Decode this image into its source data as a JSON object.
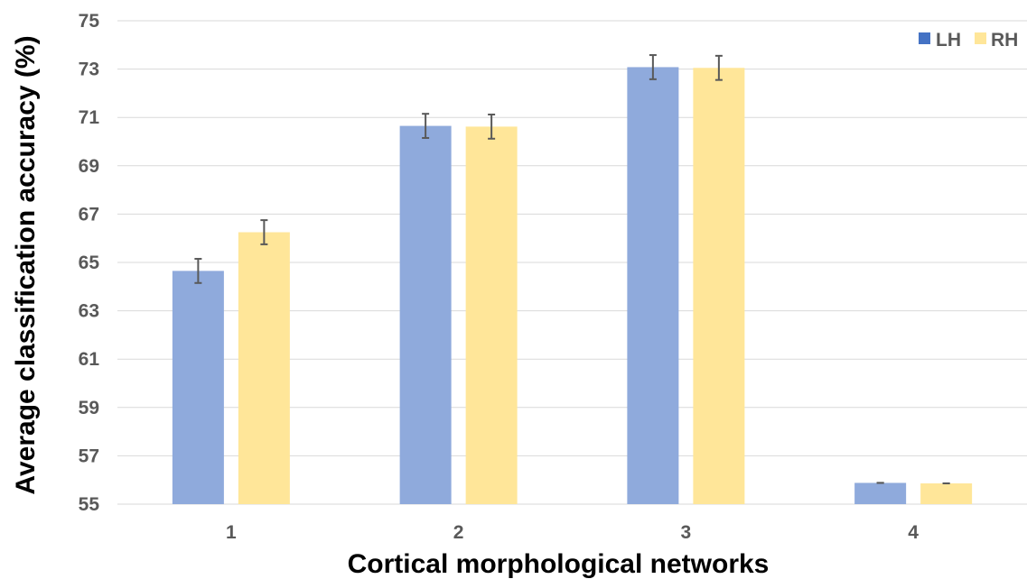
{
  "chart_data": {
    "type": "bar",
    "categories": [
      "1",
      "2",
      "3",
      "4"
    ],
    "series": [
      {
        "name": "LH",
        "values": [
          64.65,
          70.65,
          73.08,
          55.88
        ],
        "errors": [
          0.5,
          0.5,
          0.5,
          0.0
        ],
        "color": "#8faadc"
      },
      {
        "name": "RH",
        "values": [
          66.25,
          70.62,
          73.05,
          55.86
        ],
        "errors": [
          0.5,
          0.5,
          0.5,
          0.0
        ],
        "color": "#ffe699"
      }
    ],
    "xlabel": "Cortical morphological networks",
    "ylabel": "Average classification accuracy (%)",
    "ylim": [
      55,
      75
    ],
    "yticks": [
      "55",
      "57",
      "59",
      "61",
      "63",
      "65",
      "67",
      "69",
      "71",
      "73",
      "75"
    ],
    "grid": true,
    "legend_position": "top-right",
    "legend_swatch_colors": [
      "#4472c4",
      "#ffe699"
    ],
    "error_bar_color": "#595959",
    "gridline_color": "#d9d9d9"
  }
}
